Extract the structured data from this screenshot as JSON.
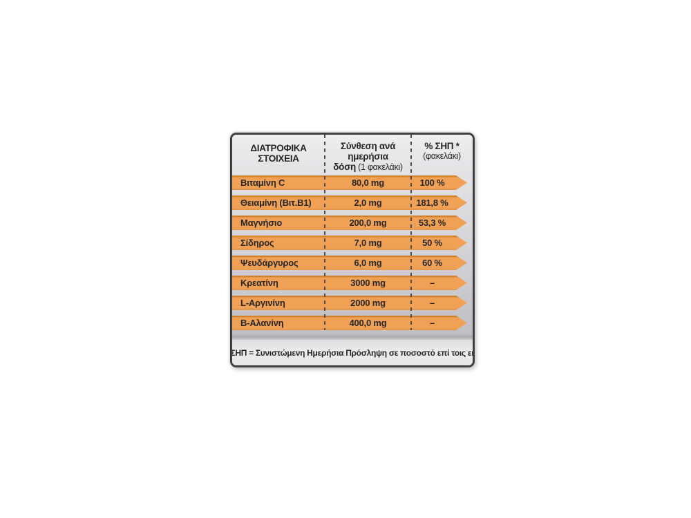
{
  "page": {
    "background": "#ffffff"
  },
  "table": {
    "header": {
      "col1": "ΔΙΑΤΡΟΦΙΚΑ ΣΤΟΙΧΕΙΑ",
      "col2_line1": "Σύνθεση ανά ημερήσια",
      "col2_line2_bold": "δόση",
      "col2_line2_rest": " (1 φακελάκι)",
      "col3_line1": "% ΣΗΠ *",
      "col3_line2": "(φακελάκι)"
    },
    "rows": [
      {
        "name": "Βιταμίνη C",
        "amount": "80,0 mg",
        "pct": "100 %"
      },
      {
        "name": "Θειαμίνη (Βιτ.Β1)",
        "amount": "2,0 mg",
        "pct": "181,8 %"
      },
      {
        "name": "Μαγνήσιο",
        "amount": "200,0 mg",
        "pct": "53,3 %"
      },
      {
        "name": "Σίδηρος",
        "amount": "7,0 mg",
        "pct": "50 %"
      },
      {
        "name": "Ψευδάργυρος",
        "amount": "6,0 mg",
        "pct": "60 %"
      },
      {
        "name": "Κρεατίνη",
        "amount": "3000 mg",
        "pct": "–"
      },
      {
        "name": "L-Αργινίνη",
        "amount": "2000 mg",
        "pct": "–"
      },
      {
        "name": "Β-Αλανίνη",
        "amount": "400,0 mg",
        "pct": "–"
      }
    ],
    "footnote": "* % ΣΗΠ = Συνιστώμενη Ημερήσια Πρόσληψη σε ποσοστό επί τοις εκατό",
    "colors": {
      "bar_orange": "#f0a155",
      "bar_orange_dark": "#d2832f",
      "frame": "#3f3f41",
      "text": "#262626"
    }
  }
}
